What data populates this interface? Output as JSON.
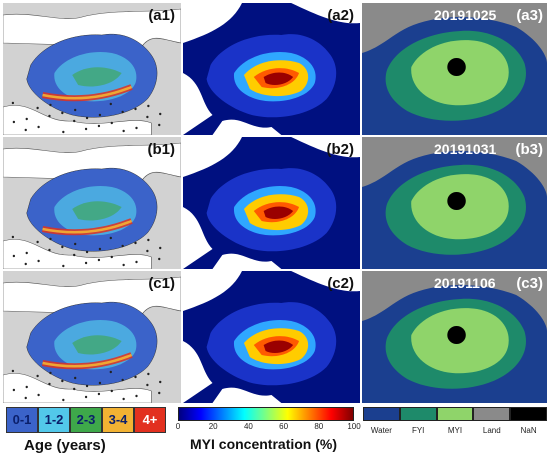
{
  "panels": [
    {
      "id": "a1",
      "label": "(a1)",
      "kind": "age"
    },
    {
      "id": "a2",
      "label": "(a2)",
      "kind": "myi"
    },
    {
      "id": "a3",
      "label": "(a3)",
      "kind": "cls",
      "date": "20191025"
    },
    {
      "id": "b1",
      "label": "(b1)",
      "kind": "age"
    },
    {
      "id": "b2",
      "label": "(b2)",
      "kind": "myi"
    },
    {
      "id": "b3",
      "label": "(b3)",
      "kind": "cls",
      "date": "20191031"
    },
    {
      "id": "c1",
      "label": "(c1)",
      "kind": "age"
    },
    {
      "id": "c2",
      "label": "(c2)",
      "kind": "myi"
    },
    {
      "id": "c3",
      "label": "(c3)",
      "kind": "cls",
      "date": "20191106"
    }
  ],
  "age_legend": {
    "title": "Age (years)",
    "classes": [
      {
        "label": "0-1",
        "color": "#3b63c9",
        "text_color": "#0b1f6b"
      },
      {
        "label": "1-2",
        "color": "#52c8ea",
        "text_color": "#0b1f6b"
      },
      {
        "label": "2-3",
        "color": "#3ea84a",
        "text_color": "#0b1f6b"
      },
      {
        "label": "3-4",
        "color": "#f2b233",
        "text_color": "#0b1f6b"
      },
      {
        "label": "4+",
        "color": "#e2301f",
        "text_color": "#ffffff"
      }
    ]
  },
  "myi_colorbar": {
    "title": "MYI concentration (%)",
    "ticks": [
      "0",
      "20",
      "40",
      "60",
      "80",
      "100"
    ],
    "colors": [
      "#00007f",
      "#0000ff",
      "#007fff",
      "#00ffff",
      "#7fff7f",
      "#ffff00",
      "#ff7f00",
      "#ff0000",
      "#7f0000"
    ]
  },
  "class_legend": {
    "classes": [
      {
        "label": "Water",
        "color": "#1b3f8f"
      },
      {
        "label": "FYI",
        "color": "#1e8a6a"
      },
      {
        "label": "MYI",
        "color": "#8fd46a"
      },
      {
        "label": "Land",
        "color": "#8a8a8a"
      },
      {
        "label": "NaN",
        "color": "#000000"
      }
    ]
  },
  "colors": {
    "age_land": "#d2d2d2",
    "age_ocean": "#ffffff",
    "age_ice_low": "#3b63c9",
    "myi_ocean": "#001080",
    "myi_ice": "#ffffff",
    "cls_land": "#8a8a8a",
    "cls_water": "#1b3f8f",
    "cls_fyi": "#1e8a6a",
    "cls_myi": "#8fd46a"
  }
}
